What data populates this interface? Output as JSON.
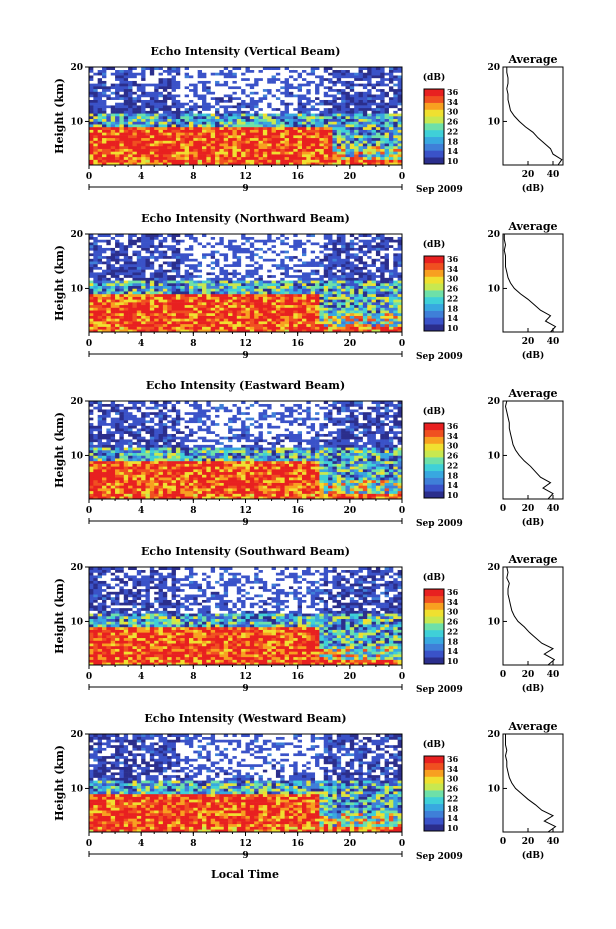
{
  "figure": {
    "x_title": "Local Time",
    "colorbar_unit": "(dB)",
    "colorbar_ticks": [
      "36",
      "34",
      "30",
      "26",
      "22",
      "18",
      "14",
      "10"
    ],
    "colorbar_colors": [
      "#2b2e8c",
      "#3a52c8",
      "#3f7fd8",
      "#38a8e0",
      "#3fd0d8",
      "#6ee0a8",
      "#c8e850",
      "#f0e030",
      "#f8a020",
      "#f05020",
      "#e82020"
    ],
    "blank_color": "#ffffff"
  },
  "chart_data": [
    {
      "type": "heatmap",
      "title": "Echo Intensity (Vertical Beam)",
      "ylabel": "Height (km)",
      "xlim": [
        0,
        24
      ],
      "ylim": [
        2,
        20
      ],
      "xticks": [
        "0",
        "4",
        "8",
        "12",
        "16",
        "20",
        "0"
      ],
      "yticks": [
        "10",
        "20"
      ],
      "date_label": "9",
      "month_label": "Sep 2009",
      "colorbar": {
        "label": "(dB)",
        "range": [
          10,
          36
        ]
      },
      "z_description": "echo intensity in dB versus local time and height",
      "average_profile": {
        "title": "Average",
        "xlabel": "(dB)",
        "xticks": [
          "20",
          "40"
        ],
        "yticks": [
          "10",
          "20"
        ],
        "xlim": [
          0,
          48
        ],
        "ylim": [
          2,
          20
        ],
        "height_km": [
          2,
          3,
          4,
          5,
          6,
          7,
          8,
          9,
          10,
          11,
          12,
          13,
          14,
          15,
          16,
          17,
          18,
          19,
          20
        ],
        "db": [
          44,
          47,
          40,
          38,
          33,
          28,
          24,
          18,
          13,
          9,
          6,
          5,
          4,
          4,
          3,
          4,
          4,
          3,
          3
        ]
      }
    },
    {
      "type": "heatmap",
      "title": "Echo Intensity (Northward Beam)",
      "ylabel": "Height (km)",
      "xlim": [
        0,
        24
      ],
      "ylim": [
        2,
        20
      ],
      "xticks": [
        "0",
        "4",
        "8",
        "12",
        "16",
        "20",
        "0"
      ],
      "yticks": [
        "10",
        "20"
      ],
      "date_label": "9",
      "month_label": "Sep 2009",
      "colorbar": {
        "label": "(dB)",
        "range": [
          10,
          36
        ]
      },
      "z_description": "echo intensity in dB versus local time and height",
      "average_profile": {
        "title": "Average",
        "xlabel": "(dB)",
        "xticks": [
          "20",
          "40"
        ],
        "yticks": [
          "10",
          "20"
        ],
        "xlim": [
          0,
          48
        ],
        "ylim": [
          2,
          20
        ],
        "height_km": [
          2,
          3,
          4,
          5,
          6,
          7,
          8,
          9,
          10,
          11,
          12,
          13,
          14,
          15,
          16,
          17,
          18,
          19,
          20
        ],
        "db": [
          38,
          42,
          34,
          38,
          30,
          25,
          20,
          14,
          9,
          6,
          4,
          3,
          2,
          2,
          2,
          1,
          2,
          1,
          1
        ]
      }
    },
    {
      "type": "heatmap",
      "title": "Echo Intensity (Eastward Beam)",
      "ylabel": "Height (km)",
      "xlim": [
        0,
        24
      ],
      "ylim": [
        2,
        20
      ],
      "xticks": [
        "0",
        "4",
        "8",
        "12",
        "16",
        "20",
        "0"
      ],
      "yticks": [
        "10",
        "20"
      ],
      "date_label": "9",
      "month_label": "Sep 2009",
      "colorbar": {
        "label": "(dB)",
        "range": [
          10,
          36
        ]
      },
      "z_description": "echo intensity in dB versus local time and height",
      "average_profile": {
        "title": "Average",
        "xlabel": "(dB)",
        "xticks": [
          "0",
          "20",
          "40"
        ],
        "yticks": [
          "10",
          "20"
        ],
        "xlim": [
          0,
          48
        ],
        "ylim": [
          2,
          20
        ],
        "height_km": [
          2,
          3,
          4,
          5,
          6,
          7,
          8,
          9,
          10,
          11,
          12,
          13,
          14,
          15,
          16,
          17,
          18,
          19,
          20
        ],
        "db": [
          36,
          40,
          32,
          38,
          30,
          26,
          22,
          17,
          13,
          10,
          8,
          7,
          6,
          5,
          5,
          4,
          3,
          2,
          3
        ]
      }
    },
    {
      "type": "heatmap",
      "title": "Echo Intensity (Southward Beam)",
      "ylabel": "Height (km)",
      "xlim": [
        0,
        24
      ],
      "ylim": [
        2,
        20
      ],
      "xticks": [
        "0",
        "4",
        "8",
        "12",
        "16",
        "20",
        "0"
      ],
      "yticks": [
        "10",
        "20"
      ],
      "date_label": "9",
      "month_label": "Sep 2009",
      "colorbar": {
        "label": "(dB)",
        "range": [
          10,
          36
        ]
      },
      "z_description": "echo intensity in dB versus local time and height",
      "average_profile": {
        "title": "Average",
        "xlabel": "(dB)",
        "xticks": [
          "0",
          "20",
          "40"
        ],
        "yticks": [
          "10",
          "20"
        ],
        "xlim": [
          0,
          48
        ],
        "ylim": [
          2,
          20
        ],
        "height_km": [
          2,
          3,
          4,
          5,
          6,
          7,
          8,
          9,
          10,
          11,
          12,
          13,
          14,
          15,
          16,
          17,
          18,
          19,
          20
        ],
        "db": [
          36,
          41,
          33,
          40,
          31,
          26,
          21,
          17,
          12,
          9,
          7,
          6,
          5,
          4,
          4,
          5,
          3,
          4,
          3
        ]
      }
    },
    {
      "type": "heatmap",
      "title": "Echo Intensity (Westward Beam)",
      "ylabel": "Height (km)",
      "xlim": [
        0,
        24
      ],
      "ylim": [
        2,
        20
      ],
      "xticks": [
        "0",
        "4",
        "8",
        "12",
        "16",
        "20",
        "0"
      ],
      "yticks": [
        "10",
        "20"
      ],
      "date_label": "9",
      "month_label": "Sep 2009",
      "colorbar": {
        "label": "(dB)",
        "range": [
          10,
          36
        ]
      },
      "z_description": "echo intensity in dB versus local time and height",
      "average_profile": {
        "title": "Average",
        "xlabel": "(dB)",
        "xticks": [
          "0",
          "20",
          "40"
        ],
        "yticks": [
          "10",
          "20"
        ],
        "xlim": [
          0,
          48
        ],
        "ylim": [
          2,
          20
        ],
        "height_km": [
          2,
          3,
          4,
          5,
          6,
          7,
          8,
          9,
          10,
          11,
          12,
          13,
          14,
          15,
          16,
          17,
          18,
          19,
          20
        ],
        "db": [
          36,
          42,
          33,
          40,
          31,
          26,
          20,
          15,
          10,
          7,
          5,
          4,
          3,
          3,
          2,
          3,
          2,
          2,
          2
        ]
      }
    }
  ]
}
